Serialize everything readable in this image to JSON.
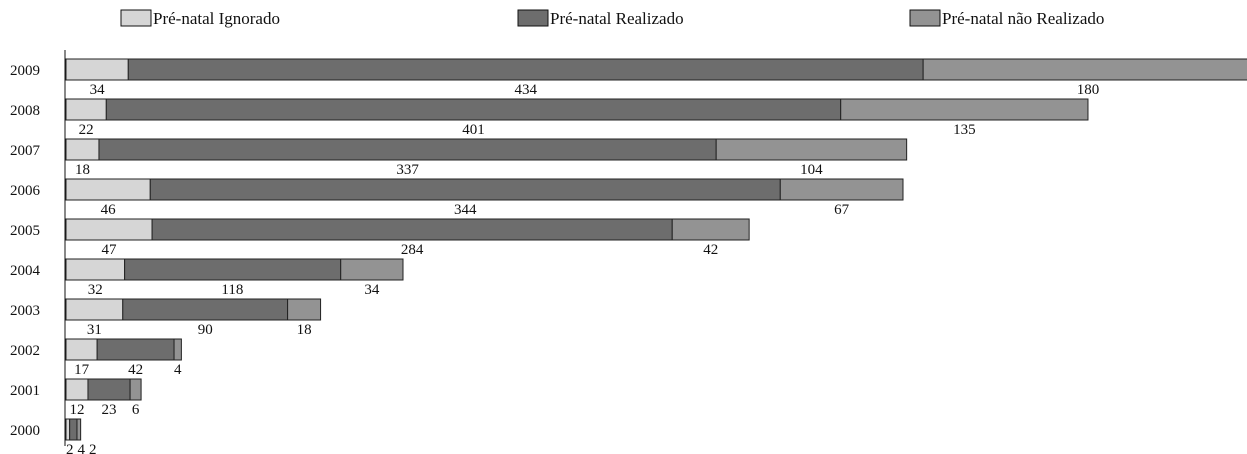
{
  "chart_data": {
    "type": "bar",
    "orientation": "horizontal",
    "stacked": true,
    "title": "",
    "xlabel": "",
    "ylabel": "",
    "legend": "top",
    "grid": false,
    "categories": [
      "2009",
      "2008",
      "2007",
      "2006",
      "2005",
      "2004",
      "2003",
      "2002",
      "2001",
      "2000"
    ],
    "series": [
      {
        "name": "Pré-natal Ignorado",
        "color": "#d6d6d6",
        "values": [
          34,
          22,
          18,
          46,
          47,
          32,
          31,
          17,
          12,
          2
        ]
      },
      {
        "name": "Pré-natal Realizado",
        "color": "#6d6d6d",
        "values": [
          434,
          401,
          337,
          344,
          284,
          118,
          90,
          42,
          23,
          4
        ]
      },
      {
        "name": "Pré-natal não Realizado",
        "color": "#939393",
        "values": [
          180,
          135,
          104,
          67,
          42,
          34,
          18,
          4,
          6,
          2
        ]
      }
    ]
  }
}
